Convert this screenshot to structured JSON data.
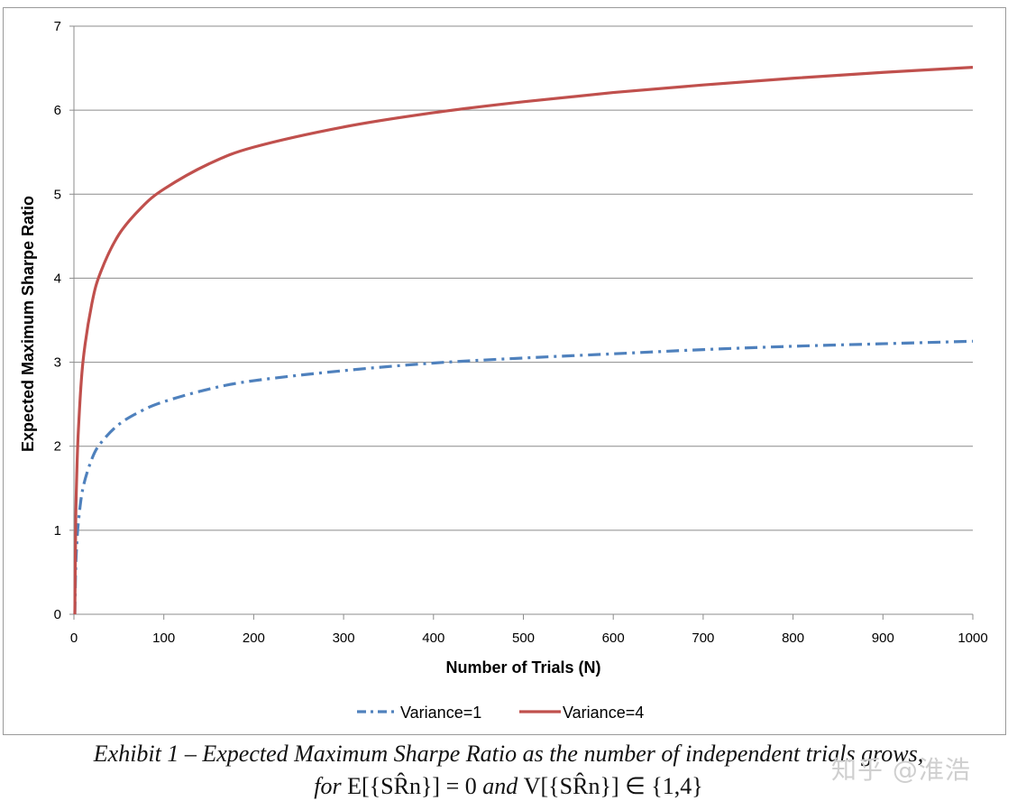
{
  "chart_data": {
    "type": "line",
    "title": "",
    "xlabel": "Number of Trials (N)",
    "ylabel": "Expected Maximum Sharpe Ratio",
    "xlim": [
      0,
      1000
    ],
    "ylim": [
      0,
      7
    ],
    "xticks": [
      0,
      100,
      200,
      300,
      400,
      500,
      600,
      700,
      800,
      900,
      1000
    ],
    "yticks": [
      0,
      1,
      2,
      3,
      4,
      5,
      6,
      7
    ],
    "grid": "horizontal",
    "legend_position": "bottom",
    "series": [
      {
        "name": "Variance=1",
        "color": "#4F81BD",
        "style": "dash-dot",
        "x": [
          1,
          2,
          3,
          5,
          10,
          20,
          30,
          50,
          75,
          100,
          150,
          200,
          300,
          400,
          500,
          600,
          700,
          800,
          900,
          1000
        ],
        "y": [
          0,
          0.55,
          0.8,
          1.1,
          1.5,
          1.85,
          2.04,
          2.26,
          2.42,
          2.53,
          2.68,
          2.78,
          2.9,
          2.99,
          3.05,
          3.1,
          3.15,
          3.19,
          3.22,
          3.25
        ]
      },
      {
        "name": "Variance=4",
        "color": "#C0504D",
        "style": "solid",
        "x": [
          1,
          2,
          3,
          5,
          10,
          20,
          30,
          50,
          75,
          100,
          150,
          200,
          300,
          400,
          500,
          600,
          700,
          800,
          900,
          1000
        ],
        "y": [
          0,
          1.1,
          1.6,
          2.2,
          3.0,
          3.7,
          4.08,
          4.52,
          4.84,
          5.06,
          5.36,
          5.56,
          5.8,
          5.97,
          6.1,
          6.21,
          6.3,
          6.38,
          6.45,
          6.51
        ]
      }
    ]
  },
  "caption": {
    "line1": "Exhibit 1 – Expected Maximum Sharpe Ratio as the number of independent trials grows,",
    "line2_for": "for",
    "line2_math_e": "E[{SR̂n}] = 0",
    "line2_and": "and",
    "line2_math_v": "V[{SR̂n}] ∈ {1,4}"
  },
  "watermark": "知乎 @淮浩"
}
